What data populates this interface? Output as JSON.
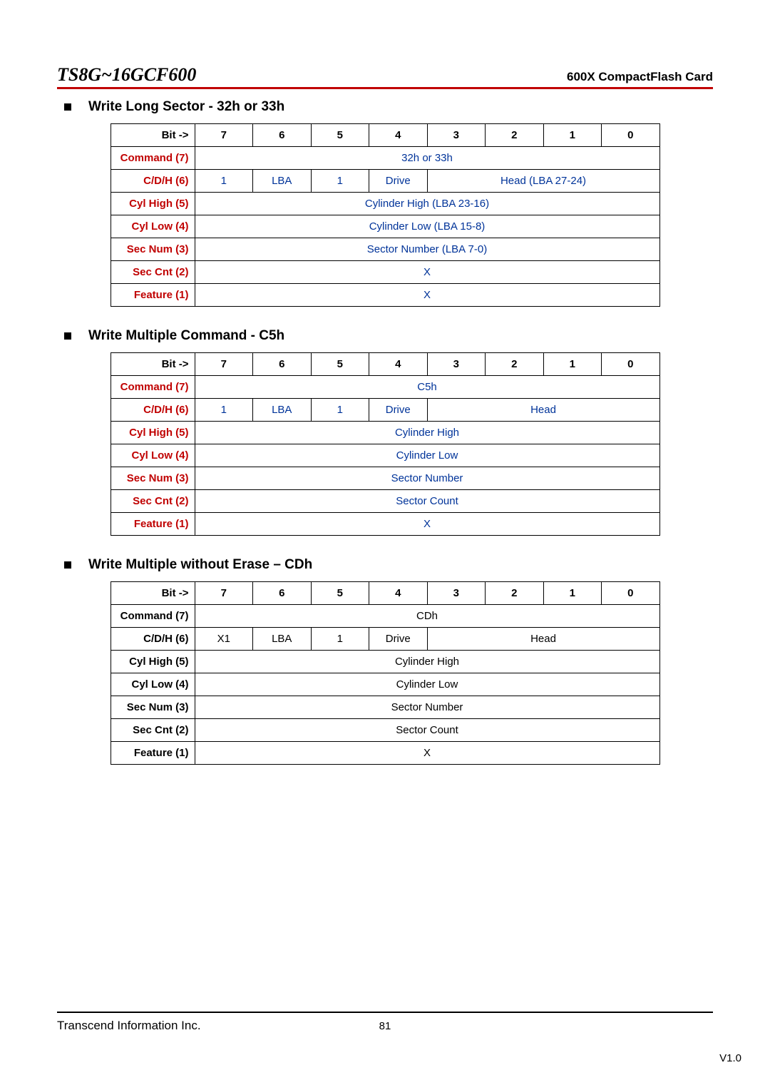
{
  "header": {
    "model": "TS8G~16GCF600",
    "product": "600X CompactFlash Card"
  },
  "sections": [
    {
      "title": "Write Long Sector - 32h or 33h",
      "label_color": "#c00000",
      "data_color": "#003399",
      "rows": [
        {
          "label": "Bit ->",
          "cells": [
            "7",
            "6",
            "5",
            "4",
            "3",
            "2",
            "1",
            "0"
          ],
          "spans": [
            1,
            1,
            1,
            1,
            1,
            1,
            1,
            1
          ],
          "header": true
        },
        {
          "label": "Command (7)",
          "cells": [
            "32h or 33h"
          ],
          "spans": [
            8
          ]
        },
        {
          "label": "C/D/H (6)",
          "cells": [
            "1",
            "LBA",
            "1",
            "Drive",
            "Head (LBA 27-24)"
          ],
          "spans": [
            1,
            1,
            1,
            1,
            4
          ]
        },
        {
          "label": "Cyl High (5)",
          "cells": [
            "Cylinder High (LBA 23-16)"
          ],
          "spans": [
            8
          ]
        },
        {
          "label": "Cyl Low (4)",
          "cells": [
            "Cylinder Low (LBA 15-8)"
          ],
          "spans": [
            8
          ]
        },
        {
          "label": "Sec Num (3)",
          "cells": [
            "Sector Number (LBA 7-0)"
          ],
          "spans": [
            8
          ]
        },
        {
          "label": "Sec Cnt (2)",
          "cells": [
            "X"
          ],
          "spans": [
            8
          ]
        },
        {
          "label": "Feature (1)",
          "cells": [
            "X"
          ],
          "spans": [
            8
          ]
        }
      ]
    },
    {
      "title": "Write Multiple Command - C5h",
      "label_color": "#c00000",
      "data_color": "#003399",
      "rows": [
        {
          "label": "Bit ->",
          "cells": [
            "7",
            "6",
            "5",
            "4",
            "3",
            "2",
            "1",
            "0"
          ],
          "spans": [
            1,
            1,
            1,
            1,
            1,
            1,
            1,
            1
          ],
          "header": true
        },
        {
          "label": "Command (7)",
          "cells": [
            "C5h"
          ],
          "spans": [
            8
          ]
        },
        {
          "label": "C/D/H (6)",
          "cells": [
            "1",
            "LBA",
            "1",
            "Drive",
            "Head"
          ],
          "spans": [
            1,
            1,
            1,
            1,
            4
          ]
        },
        {
          "label": "Cyl High (5)",
          "cells": [
            "Cylinder High"
          ],
          "spans": [
            8
          ]
        },
        {
          "label": "Cyl Low (4)",
          "cells": [
            "Cylinder Low"
          ],
          "spans": [
            8
          ]
        },
        {
          "label": "Sec Num (3)",
          "cells": [
            "Sector Number"
          ],
          "spans": [
            8
          ]
        },
        {
          "label": "Sec Cnt (2)",
          "cells": [
            "Sector Count"
          ],
          "spans": [
            8
          ]
        },
        {
          "label": "Feature (1)",
          "cells": [
            "X"
          ],
          "spans": [
            8
          ]
        }
      ]
    },
    {
      "title": "Write Multiple without Erase – CDh",
      "label_color": "#000000",
      "data_color": "#000000",
      "rows": [
        {
          "label": "Bit ->",
          "cells": [
            "7",
            "6",
            "5",
            "4",
            "3",
            "2",
            "1",
            "0"
          ],
          "spans": [
            1,
            1,
            1,
            1,
            1,
            1,
            1,
            1
          ],
          "header": true
        },
        {
          "label": "Command (7)",
          "cells": [
            "CDh"
          ],
          "spans": [
            8
          ]
        },
        {
          "label": "C/D/H (6)",
          "cells": [
            "X1",
            "LBA",
            "1",
            "Drive",
            "Head"
          ],
          "spans": [
            1,
            1,
            1,
            1,
            4
          ]
        },
        {
          "label": "Cyl High (5)",
          "cells": [
            "Cylinder High"
          ],
          "spans": [
            8
          ]
        },
        {
          "label": "Cyl Low (4)",
          "cells": [
            "Cylinder Low"
          ],
          "spans": [
            8
          ]
        },
        {
          "label": "Sec Num (3)",
          "cells": [
            "Sector Number"
          ],
          "spans": [
            8
          ]
        },
        {
          "label": "Sec Cnt (2)",
          "cells": [
            "Sector Count"
          ],
          "spans": [
            8
          ]
        },
        {
          "label": "Feature (1)",
          "cells": [
            "X"
          ],
          "spans": [
            8
          ]
        }
      ]
    }
  ],
  "footer": {
    "company": "Transcend Information Inc.",
    "page_number": "81",
    "version": "V1.0"
  }
}
